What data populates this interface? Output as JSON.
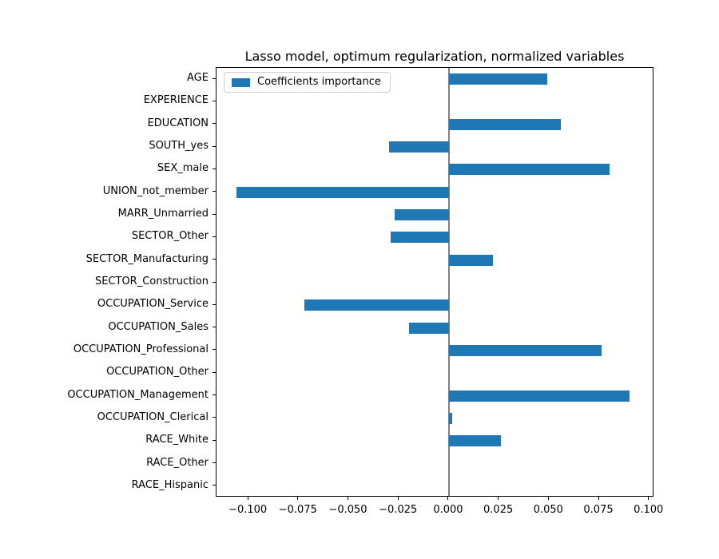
{
  "chart_data": {
    "type": "bar",
    "orientation": "horizontal",
    "title": "Lasso model, optimum regularization, normalized variables",
    "legend_label": "Coefficients importance",
    "legend_position": "upper left",
    "grid": false,
    "bar_color": "#1f77b4",
    "zero_line_color": "#808080",
    "xlabel": "",
    "ylabel": "",
    "xlim": [
      -0.116,
      0.1025
    ],
    "xticks": [
      -0.1,
      -0.075,
      -0.05,
      -0.025,
      0.0,
      0.025,
      0.05,
      0.075,
      0.1
    ],
    "xtick_labels": [
      "−0.100",
      "−0.075",
      "−0.050",
      "−0.025",
      "0.000",
      "0.025",
      "0.050",
      "0.075",
      "0.100"
    ],
    "categories_order": "top-to-bottom",
    "categories": [
      "AGE",
      "EXPERIENCE",
      "EDUCATION",
      "SOUTH_yes",
      "SEX_male",
      "UNION_not_member",
      "MARR_Unmarried",
      "SECTOR_Other",
      "SECTOR_Manufacturing",
      "SECTOR_Construction",
      "OCCUPATION_Service",
      "OCCUPATION_Sales",
      "OCCUPATION_Professional",
      "OCCUPATION_Other",
      "OCCUPATION_Management",
      "OCCUPATION_Clerical",
      "RACE_White",
      "RACE_Other",
      "RACE_Hispanic"
    ],
    "values": [
      0.049,
      0.0,
      0.056,
      -0.03,
      0.08,
      -0.106,
      -0.027,
      -0.029,
      0.022,
      0.0,
      -0.072,
      -0.02,
      0.076,
      0.0,
      0.09,
      0.0015,
      0.026,
      0.0,
      0.0
    ]
  }
}
